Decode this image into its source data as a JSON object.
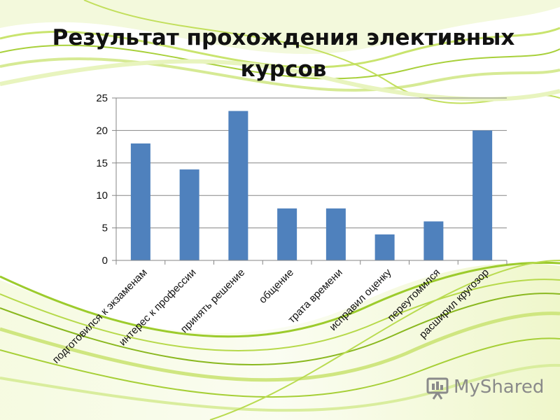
{
  "slide": {
    "title_line1": "Результат прохождения элективных",
    "title_line2": "курсов",
    "watermark": "MyShared"
  },
  "colors": {
    "bar": "#4f81bd",
    "axis": "#868686",
    "text": "#111111",
    "wave_light": "#e4f2a6",
    "wave_mid": "#b6d94a",
    "wave_dark": "#8ab81f"
  },
  "chart_data": {
    "type": "bar",
    "categories": [
      "подготовился к экзаменам",
      "интерес к профессии",
      "принять решение",
      "общение",
      "трата времени",
      "исправил оценку",
      "переутомился",
      "расширил кругозор"
    ],
    "values": [
      18,
      14,
      23,
      8,
      8,
      4,
      6,
      20
    ],
    "yticks": [
      0,
      5,
      10,
      15,
      20,
      25
    ],
    "ylim": [
      0,
      25
    ],
    "grid": true,
    "legend": "none"
  }
}
